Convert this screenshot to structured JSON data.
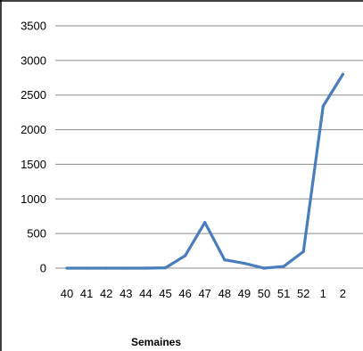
{
  "chart_data": {
    "type": "line",
    "title": "",
    "xlabel": "Semaines",
    "ylabel": "",
    "categories": [
      "40",
      "41",
      "42",
      "43",
      "44",
      "45",
      "46",
      "47",
      "48",
      "49",
      "50",
      "51",
      "52",
      "1",
      "2"
    ],
    "series": [
      {
        "values": [
          0,
          0,
          0,
          0,
          0,
          5,
          180,
          660,
          120,
          70,
          0,
          25,
          240,
          2340,
          2800
        ]
      }
    ],
    "ylim": [
      0,
      3500
    ],
    "yticks": [
      "0",
      "500",
      "1000",
      "1500",
      "2000",
      "2500",
      "3000",
      "3500"
    ],
    "grid": true,
    "legend": "none",
    "colors": {
      "series": "#4a7ebb",
      "grid": "#8c8c8c",
      "frame": "#000000"
    }
  }
}
